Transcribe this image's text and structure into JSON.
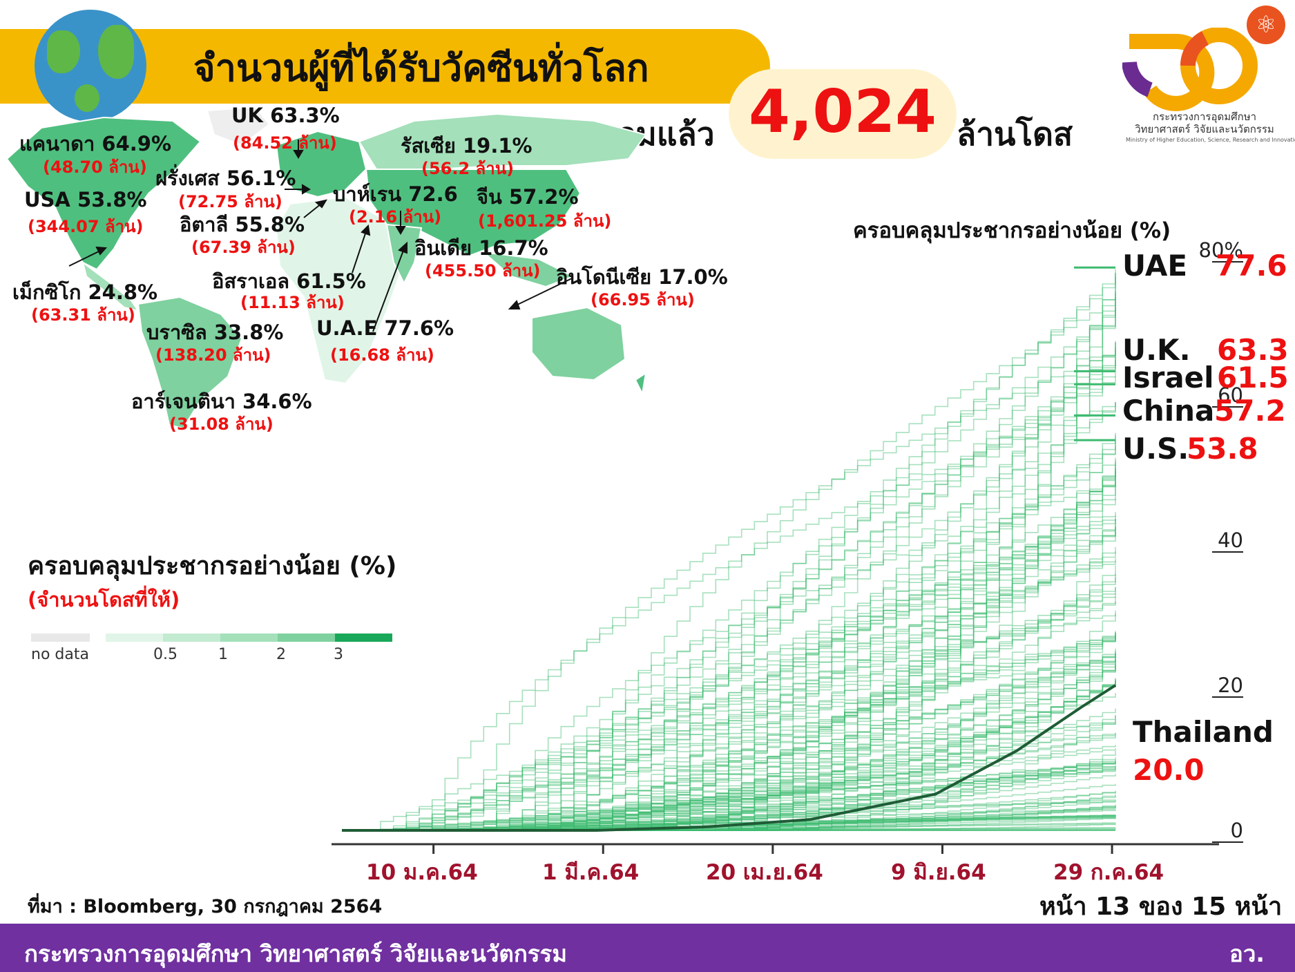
{
  "header": {
    "title": "จำนวนผู้ที่ได้รับวัคซีนทั่วโลก",
    "total_label": "รวมแล้ว",
    "total_value": "4,024",
    "total_unit": "ล้านโดส"
  },
  "ministry": {
    "name_line1": "กระทรวงการอุดมศึกษา",
    "name_line2": "วิทยาศาสตร์ วิจัยและนวัตกรรม",
    "name_en": "Ministry of Higher Education, Science, Research and Innovation"
  },
  "map_labels": [
    {
      "name": "แคนาดา 64.9%",
      "doses": "(48.70 ล้าน)"
    },
    {
      "name": "UK 63.3%",
      "doses": "(84.52 ล้าน)"
    },
    {
      "name": "รัสเซีย 19.1%",
      "doses": "(56.2 ล้าน)"
    },
    {
      "name": "ฝรั่งเศส 56.1%",
      "doses": "(72.75 ล้าน)"
    },
    {
      "name": "USA 53.8%",
      "doses": "(344.07 ล้าน)"
    },
    {
      "name": "อิตาลี 55.8%",
      "doses": "(67.39 ล้าน)"
    },
    {
      "name": "บาห์เรน 72.6",
      "doses": "(2.16 ล้าน)"
    },
    {
      "name": "จีน 57.2%",
      "doses": "(1,601.25 ล้าน)"
    },
    {
      "name": "อินเดีย 16.7%",
      "doses": "(455.50 ล้าน)"
    },
    {
      "name": "เม็กซิโก 24.8%",
      "doses": "(63.31 ล้าน)"
    },
    {
      "name": "อิสราเอล 61.5%",
      "doses": "(11.13 ล้าน)"
    },
    {
      "name": "อินโดนีเซีย 17.0%",
      "doses": "(66.95 ล้าน)"
    },
    {
      "name": "บราซิล 33.8%",
      "doses": "(138.20 ล้าน)"
    },
    {
      "name": "U.A.E 77.6%",
      "doses": "(16.68 ล้าน)"
    },
    {
      "name": "อาร์เจนตินา 34.6%",
      "doses": "(31.08 ล้าน)"
    }
  ],
  "legend": {
    "title": "ครอบคลุมประชากรอย่างน้อย (%)",
    "subtitle": "(จำนวนโดสที่ให้)",
    "no_data": "no data",
    "ticks": [
      "0.5",
      "1",
      "2",
      "3"
    ],
    "colors": [
      "#e0f5e8",
      "#c3ebd1",
      "#a4e0ba",
      "#7fd19f",
      "#4fbf7f",
      "#19a85a"
    ]
  },
  "colors": {
    "title_bar": "#f5b800",
    "accent_red": "#e11111",
    "footer": "#7030a0",
    "line_green": "#3cba6f",
    "thailand_line": "#1f5c36",
    "date_red": "#a0122d"
  },
  "chart_data": {
    "type": "line",
    "title": "ครอบคลุมประชากรอย่างน้อย (%)",
    "y_ticks": [
      "0",
      "20",
      "40",
      "60",
      "80%"
    ],
    "ylim": [
      0,
      80
    ],
    "x_ticks": [
      "10 ม.ค.64",
      "1 มี.ค.64",
      "20 เม.ย.64",
      "9 มิ.ย.64",
      "29 ก.ค.64"
    ],
    "x_range": [
      "2020-12-14",
      "2021-07-30"
    ],
    "highlighted": [
      {
        "name": "UAE",
        "value": "77.6"
      },
      {
        "name": "U.K.",
        "value": "63.3"
      },
      {
        "name": "Israel",
        "value": "61.5"
      },
      {
        "name": "China",
        "value": "57.2"
      },
      {
        "name": "U.S.",
        "value": "53.8"
      }
    ],
    "thailand": {
      "name": "Thailand",
      "value": "20.0",
      "x": [
        "2021-02-27",
        "2021-04-01",
        "2021-05-01",
        "2021-06-07",
        "2021-06-15",
        "2021-07-01",
        "2021-07-20",
        "2021-07-30"
      ],
      "y": [
        0,
        0.5,
        1.5,
        5,
        7,
        11,
        17,
        20
      ]
    },
    "grid": false
  },
  "footer": {
    "source": "ที่มา : Bloomberg, 30 กรกฎาคม 2564",
    "page": "หน้า 13 ของ 15 หน้า",
    "ministry": "กระทรวงการอุดมศึกษา วิทยาศาสตร์ วิจัยและนวัตกรรม",
    "abbr": "อว."
  }
}
